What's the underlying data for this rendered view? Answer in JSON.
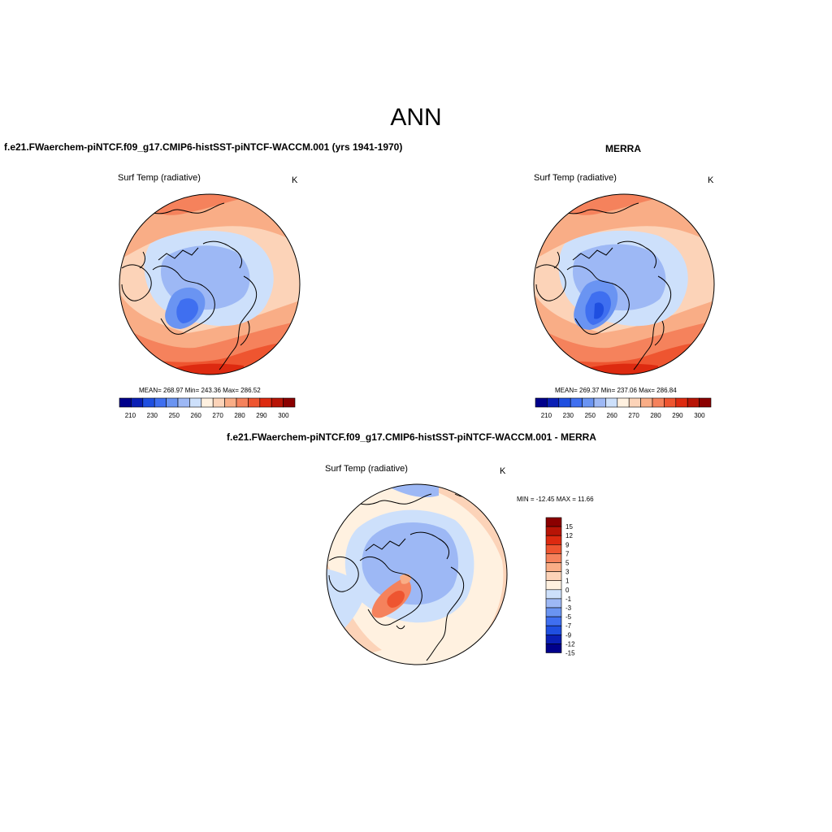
{
  "page": {
    "title": "ANN"
  },
  "panels": [
    {
      "title": "f.e21.FWaerchem-piNTCF.f09_g17.CMIP6-histSST-piNTCF-WACCM.001 (yrs 1941-1970)",
      "var_label": "Surf Temp (radiative)",
      "unit": "K",
      "stats": "MEAN= 268.97  Min= 243.36  Max= 286.52"
    },
    {
      "title": "MERRA",
      "var_label": "Surf Temp (radiative)",
      "unit": "K",
      "stats": "MEAN= 269.37  Min= 237.06  Max= 286.84"
    },
    {
      "title": "f.e21.FWaerchem-piNTCF.f09_g17.CMIP6-histSST-piNTCF-WACCM.001 - MERRA",
      "var_label": "Surf Temp (radiative)",
      "unit": "K",
      "stats": "MIN = -12.45 MAX =  11.66"
    }
  ],
  "chart_data": [
    {
      "type": "heatmap",
      "projection": "north-polar-stereographic",
      "title": "f.e21.FWaerchem-piNTCF.f09_g17.CMIP6-histSST-piNTCF-WACCM.001 (yrs 1941-1970)",
      "variable": "Surf Temp (radiative)",
      "units": "K",
      "mean": 268.97,
      "min": 243.36,
      "max": 286.52,
      "colorbar_ticks": [
        "210",
        "230",
        "250",
        "260",
        "270",
        "280",
        "290",
        "300"
      ],
      "colorbar_colors": [
        "#00008b",
        "#0a1fb5",
        "#1f4fe0",
        "#3f6ff0",
        "#6a94f2",
        "#9db8f5",
        "#cde0fb",
        "#fff1e0",
        "#fcd3b8",
        "#f9ad86",
        "#f5825c",
        "#ee5530",
        "#dd2a10",
        "#b81406",
        "#8b0000"
      ]
    },
    {
      "type": "heatmap",
      "projection": "north-polar-stereographic",
      "title": "MERRA",
      "variable": "Surf Temp (radiative)",
      "units": "K",
      "mean": 269.37,
      "min": 237.06,
      "max": 286.84,
      "colorbar_ticks": [
        "210",
        "230",
        "250",
        "260",
        "270",
        "280",
        "290",
        "300"
      ],
      "colorbar_colors": [
        "#00008b",
        "#0a1fb5",
        "#1f4fe0",
        "#3f6ff0",
        "#6a94f2",
        "#9db8f5",
        "#cde0fb",
        "#fff1e0",
        "#fcd3b8",
        "#f9ad86",
        "#f5825c",
        "#ee5530",
        "#dd2a10",
        "#b81406",
        "#8b0000"
      ]
    },
    {
      "type": "heatmap",
      "projection": "north-polar-stereographic",
      "title": "f.e21.FWaerchem-piNTCF.f09_g17.CMIP6-histSST-piNTCF-WACCM.001 - MERRA",
      "variable": "Surf Temp (radiative)",
      "units": "K",
      "min": -12.45,
      "max": 11.66,
      "colorbar_ticks": [
        "15",
        "12",
        "9",
        "7",
        "5",
        "3",
        "1",
        "0",
        "-1",
        "-3",
        "-5",
        "-7",
        "-9",
        "-12",
        "-15"
      ],
      "colorbar_colors": [
        "#8b0000",
        "#b81406",
        "#dd2a10",
        "#ee5530",
        "#f5825c",
        "#f9ad86",
        "#fcd3b8",
        "#fff1e0",
        "#cde0fb",
        "#9db8f5",
        "#6a94f2",
        "#3f6ff0",
        "#1f4fe0",
        "#0a1fb5",
        "#00008b"
      ]
    }
  ]
}
